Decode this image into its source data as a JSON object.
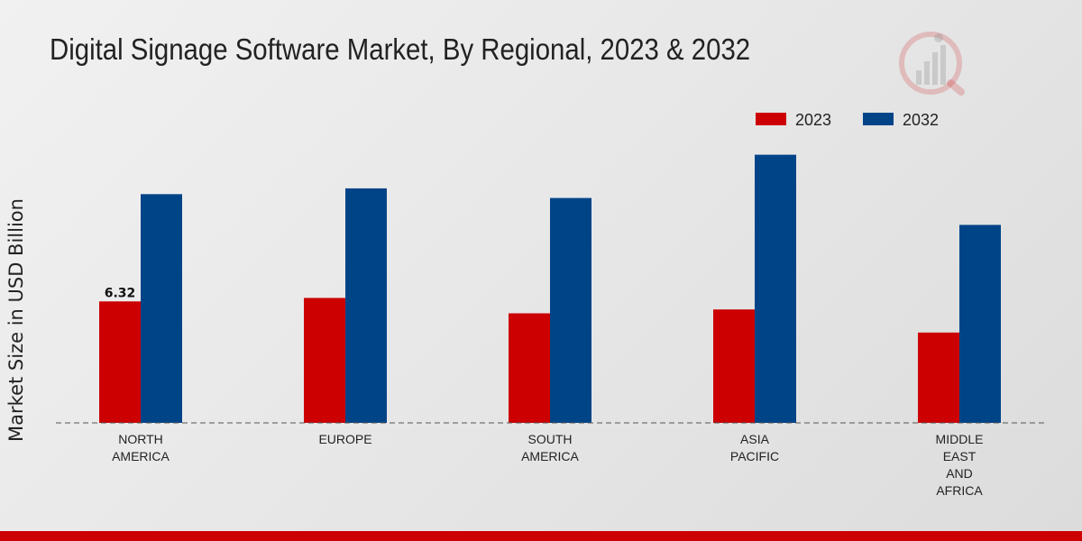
{
  "header": {
    "title": "Digital Signage Software Market, By Regional, 2023 & 2032"
  },
  "brand": {
    "logo_icon": "market-research-logo-icon",
    "accent": "#cc0000"
  },
  "chart_data": {
    "type": "bar",
    "title": "Digital Signage Software Market, By Regional, 2023 & 2032",
    "xlabel": "",
    "ylabel": "Market Size in USD Billion",
    "categories": [
      [
        "NORTH",
        "AMERICA"
      ],
      [
        "EUROPE"
      ],
      [
        "SOUTH",
        "AMERICA"
      ],
      [
        "ASIA",
        "PACIFIC"
      ],
      [
        "MIDDLE",
        "EAST",
        "AND",
        "AFRICA"
      ]
    ],
    "series": [
      {
        "name": "2023",
        "color": "#cc0000",
        "values": [
          6.32,
          6.5,
          5.7,
          5.9,
          4.7
        ]
      },
      {
        "name": "2032",
        "color": "#004488",
        "values": [
          11.9,
          12.2,
          11.7,
          13.95,
          10.3
        ]
      }
    ],
    "data_labels": [
      {
        "series": 0,
        "index": 0,
        "text": "6.32"
      }
    ],
    "ylim": [
      0,
      22
    ],
    "grid": false,
    "legend_position": "top-right",
    "baseline_style": "dashed"
  }
}
